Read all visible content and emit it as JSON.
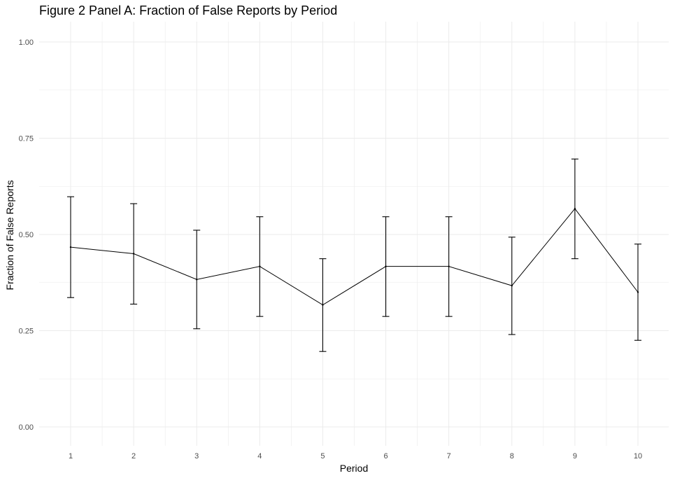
{
  "chart_data": {
    "type": "line",
    "title": "Figure 2 Panel A: Fraction of False Reports by Period",
    "xlabel": "Period",
    "ylabel": "Fraction of False Reports",
    "x": [
      1,
      2,
      3,
      4,
      5,
      6,
      7,
      8,
      9,
      10
    ],
    "x_tick_labels": [
      "1",
      "2",
      "3",
      "4",
      "5",
      "6",
      "7",
      "8",
      "9",
      "10"
    ],
    "y_ticks": [
      0.0,
      0.25,
      0.5,
      0.75,
      1.0
    ],
    "y_tick_labels": [
      "0.00",
      "0.25",
      "0.50",
      "0.75",
      "1.00"
    ],
    "ylim": [
      0.0,
      1.0
    ],
    "xlim": [
      1,
      10
    ],
    "grid": true,
    "series": [
      {
        "values": [
          0.467,
          0.45,
          0.383,
          0.417,
          0.317,
          0.417,
          0.417,
          0.367,
          0.567,
          0.35
        ],
        "error_lower": [
          0.336,
          0.319,
          0.255,
          0.287,
          0.196,
          0.287,
          0.287,
          0.24,
          0.437,
          0.225
        ],
        "error_upper": [
          0.598,
          0.58,
          0.511,
          0.546,
          0.437,
          0.546,
          0.546,
          0.493,
          0.696,
          0.475
        ],
        "color": "#000000"
      }
    ],
    "colors": {
      "background": "#ffffff",
      "grid": "#ebebeb",
      "line": "#000000",
      "tick_text": "#4d4d4d"
    }
  }
}
